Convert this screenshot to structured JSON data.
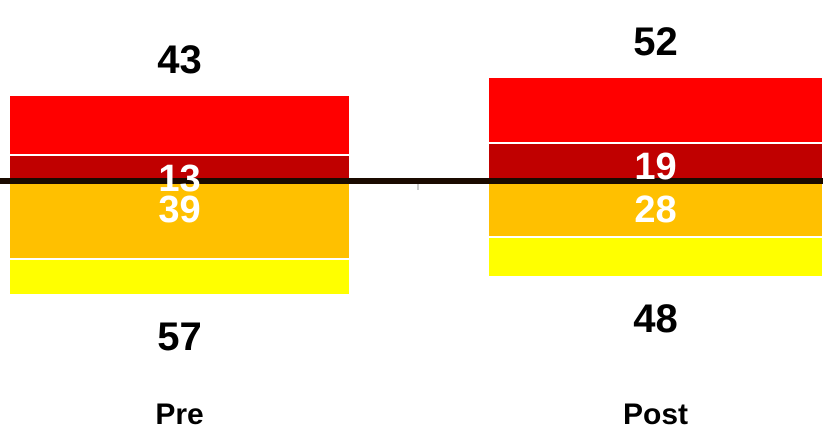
{
  "chart_data": {
    "type": "bar",
    "subtype": "diverging-stacked",
    "categories": [
      "Pre",
      "Post"
    ],
    "series": [
      {
        "segment": "top-outer",
        "values": [
          30,
          33
        ],
        "color": "#FF0000"
      },
      {
        "segment": "top-inner",
        "values": [
          13,
          19
        ],
        "color": "#C00000"
      },
      {
        "segment": "bottom-inner",
        "values": [
          39,
          28
        ],
        "color": "#FFC000"
      },
      {
        "segment": "bottom-outer",
        "values": [
          18,
          20
        ],
        "color": "#FFFF00"
      }
    ],
    "upper_totals": [
      43,
      52
    ],
    "lower_totals": [
      57,
      48
    ],
    "upper_total_labels": [
      "43",
      "52"
    ],
    "lower_total_labels": [
      "57",
      "48"
    ],
    "inner_labels": {
      "top_inner": [
        "13",
        "19"
      ],
      "bottom_inner": [
        "39",
        "28"
      ]
    },
    "baseline_color": "#1a0a00",
    "title": "",
    "xlabel": "",
    "ylabel": ""
  }
}
